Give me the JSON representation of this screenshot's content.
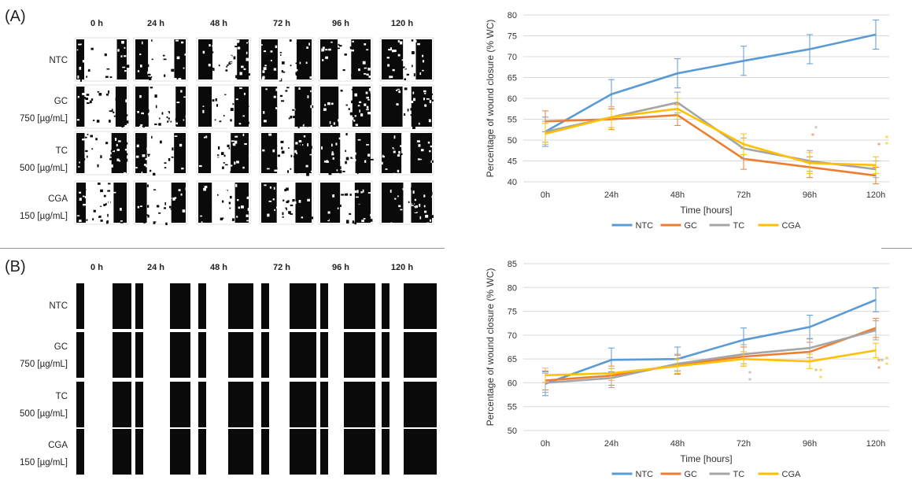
{
  "panelA": {
    "label": "(A)",
    "timepoints": [
      "0 h",
      "24 h",
      "48 h",
      "72 h",
      "96 h",
      "120 h"
    ],
    "rows": [
      {
        "l1": "NTC",
        "l2": ""
      },
      {
        "l1": "GC",
        "l2": "750 [µg/mL]"
      },
      {
        "l1": "TC",
        "l2": "500 [µg/mL]"
      },
      {
        "l1": "CGA",
        "l2": "150 [µg/mL]"
      }
    ]
  },
  "panelB": {
    "label": "(B)",
    "timepoints": [
      "0 h",
      "24 h",
      "48 h",
      "72 h",
      "96 h",
      "120 h"
    ],
    "rows": [
      {
        "l1": "NTC",
        "l2": ""
      },
      {
        "l1": "GC",
        "l2": "750 [µg/mL]"
      },
      {
        "l1": "TC",
        "l2": "500 [µg/mL]"
      },
      {
        "l1": "CGA",
        "l2": "150 [µg/mL]"
      }
    ]
  },
  "colors": {
    "NTC": "#5b9bd5",
    "GC": "#ed7d31",
    "TC": "#a5a5a5",
    "CGA": "#ffc000"
  },
  "chart_data": [
    {
      "type": "line",
      "categories": [
        "0h",
        "24h",
        "48h",
        "72h",
        "96h",
        "120h"
      ],
      "xlabel": "Time [hours]",
      "ylabel": "Percentage of wound closure (% WC)",
      "ylim": [
        40,
        80
      ],
      "yticks": [
        40,
        45,
        50,
        55,
        60,
        65,
        70,
        75,
        80
      ],
      "grid": true,
      "legend": "bottom",
      "series": [
        {
          "name": "NTC",
          "values": [
            52,
            61,
            66,
            69,
            71.8,
            75.3
          ],
          "err": [
            3.5,
            3.5,
            3.5,
            3.5,
            3.5,
            3.5
          ]
        },
        {
          "name": "GC",
          "values": [
            54.5,
            55,
            56,
            45.5,
            43.5,
            41.5
          ],
          "err": [
            2.5,
            2.5,
            2.5,
            2.5,
            2.5,
            2
          ]
        },
        {
          "name": "TC",
          "values": [
            52,
            55.5,
            59,
            48,
            45,
            43
          ],
          "err": [
            2.5,
            2.5,
            2.5,
            2.5,
            2.5,
            2
          ]
        },
        {
          "name": "CGA",
          "values": [
            51.5,
            55.5,
            57.5,
            49,
            44.5,
            44
          ],
          "err": [
            2.5,
            2.5,
            2.5,
            2.5,
            2.5,
            2
          ]
        }
      ],
      "annotations": [
        {
          "x": "96h",
          "y": 52.8,
          "text": "*",
          "series": "TC"
        },
        {
          "x": "96h",
          "y": 51,
          "text": "*",
          "series": "GC"
        },
        {
          "x": "120h",
          "y": 48.8,
          "text": "*",
          "series": "GC"
        },
        {
          "x": "120h",
          "y": 50.5,
          "text": "*",
          "series": "CGA"
        },
        {
          "x": "120h",
          "y": 49,
          "text": "*",
          "series": "CGA"
        }
      ]
    },
    {
      "type": "line",
      "categories": [
        "0h",
        "24h",
        "48h",
        "72h",
        "96h",
        "120h"
      ],
      "xlabel": "Time [hours]",
      "ylabel": "Percentage of wound closure (% WC)",
      "ylim": [
        50,
        85
      ],
      "yticks": [
        50,
        55,
        60,
        65,
        70,
        75,
        80,
        85
      ],
      "grid": true,
      "legend": "bottom",
      "series": [
        {
          "name": "NTC",
          "values": [
            59.8,
            64.8,
            65,
            69,
            71.7,
            77.4
          ],
          "err": [
            2.5,
            2.5,
            2.5,
            2.5,
            2.5,
            2.5
          ]
        },
        {
          "name": "GC",
          "values": [
            60.5,
            61.5,
            63.8,
            65.5,
            66.5,
            71.5
          ],
          "err": [
            2,
            2,
            2,
            2,
            2,
            2
          ]
        },
        {
          "name": "TC",
          "values": [
            60,
            61,
            64,
            66,
            67.3,
            71
          ],
          "err": [
            2,
            2,
            2,
            2,
            2,
            2
          ]
        },
        {
          "name": "CGA",
          "values": [
            61.6,
            62,
            63.5,
            65,
            64.5,
            66.8
          ],
          "err": [
            1.5,
            1.5,
            1.5,
            1.5,
            1.5,
            1.5
          ]
        }
      ],
      "annotations": [
        {
          "x": "72h",
          "y": 62,
          "text": "*",
          "series": "TC"
        },
        {
          "x": "72h",
          "y": 60.5,
          "text": "*",
          "series": "TC"
        },
        {
          "x": "96h",
          "y": 62.5,
          "text": "*",
          "series": "TC"
        },
        {
          "x": "96h",
          "y": 62.5,
          "text": "*",
          "series": "CGA"
        },
        {
          "x": "96h",
          "y": 61,
          "text": "*",
          "series": "CGA"
        },
        {
          "x": "120h",
          "y": 64.5,
          "text": "*",
          "series": "GC"
        },
        {
          "x": "120h",
          "y": 64.5,
          "text": "*",
          "series": "TC"
        },
        {
          "x": "120h",
          "y": 63,
          "text": "*",
          "series": "GC"
        },
        {
          "x": "120h",
          "y": 65,
          "text": "*",
          "series": "CGA"
        },
        {
          "x": "120h",
          "y": 63.8,
          "text": "*",
          "series": "CGA"
        }
      ]
    }
  ]
}
